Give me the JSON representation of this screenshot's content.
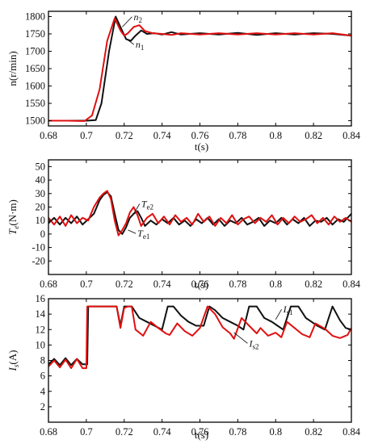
{
  "colors": {
    "series_1": "#111111",
    "series_2": "#e01010"
  },
  "chart_data": [
    {
      "type": "line",
      "xlabel": "t(s)",
      "ylabel": "n(r/min)",
      "xlim": [
        0.68,
        0.84
      ],
      "ylim": [
        1485,
        1815
      ],
      "xticks": [
        "0.68",
        "0.7",
        "0.72",
        "0.74",
        "0.76",
        "0.78",
        "0.8",
        "0.82",
        "0.84"
      ],
      "yticks": [
        "1500",
        "1550",
        "1600",
        "1650",
        "1700",
        "1750",
        "1800"
      ],
      "grid": false,
      "annotations": [
        {
          "label": "n",
          "sub": "2",
          "at": [
            0.725,
            1790
          ],
          "target": [
            0.719,
            1770
          ]
        },
        {
          "label": "n",
          "sub": "1",
          "at": [
            0.726,
            1710
          ],
          "target": [
            0.722,
            1732
          ]
        }
      ],
      "series": [
        {
          "name": "n₁",
          "color": "#111111",
          "x": [
            0.68,
            0.69,
            0.7,
            0.705,
            0.708,
            0.712,
            0.7155,
            0.718,
            0.721,
            0.7235,
            0.726,
            0.729,
            0.732,
            0.736,
            0.74,
            0.745,
            0.75,
            0.76,
            0.77,
            0.78,
            0.79,
            0.8,
            0.81,
            0.82,
            0.83,
            0.84
          ],
          "y": [
            1500,
            1500,
            1500,
            1502,
            1550,
            1700,
            1800,
            1770,
            1735,
            1730,
            1745,
            1760,
            1750,
            1752,
            1748,
            1755,
            1748,
            1752,
            1748,
            1753,
            1747,
            1752,
            1748,
            1752,
            1750,
            1745
          ]
        },
        {
          "name": "n₂",
          "color": "#e01010",
          "x": [
            0.68,
            0.69,
            0.699,
            0.703,
            0.707,
            0.711,
            0.715,
            0.718,
            0.72,
            0.722,
            0.725,
            0.728,
            0.731,
            0.735,
            0.74,
            0.745,
            0.75,
            0.76,
            0.77,
            0.78,
            0.79,
            0.8,
            0.81,
            0.82,
            0.83,
            0.84
          ],
          "y": [
            1500,
            1500,
            1499,
            1515,
            1590,
            1730,
            1795,
            1760,
            1745,
            1752,
            1770,
            1775,
            1758,
            1752,
            1750,
            1747,
            1752,
            1748,
            1752,
            1748,
            1752,
            1748,
            1752,
            1748,
            1752,
            1745
          ]
        }
      ]
    },
    {
      "type": "line",
      "xlabel": "t(s)",
      "ylabel": "Te(N·m)",
      "xlim": [
        0.68,
        0.84
      ],
      "ylim": [
        -30,
        55
      ],
      "xticks": [
        "0.68",
        "0.7",
        "0.72",
        "0.74",
        "0.76",
        "0.78",
        "0.8",
        "0.82",
        "0.84"
      ],
      "yticks": [
        "-20",
        "-10",
        "0",
        "10",
        "20",
        "30",
        "40",
        "50"
      ],
      "grid": false,
      "annotations": [
        {
          "label": "T",
          "sub": "e2",
          "at": [
            0.729,
            20
          ],
          "target": [
            0.725,
            15
          ]
        },
        {
          "label": "T",
          "sub": "e1",
          "at": [
            0.727,
            -2
          ],
          "target": [
            0.722,
            3
          ]
        }
      ],
      "series": [
        {
          "name": "Te1",
          "color": "#111111",
          "x": [
            0.68,
            0.683,
            0.686,
            0.689,
            0.692,
            0.695,
            0.698,
            0.701,
            0.704,
            0.707,
            0.709,
            0.711,
            0.713,
            0.715,
            0.717,
            0.719,
            0.721,
            0.723,
            0.725,
            0.727,
            0.729,
            0.731,
            0.734,
            0.737,
            0.74,
            0.743,
            0.746,
            0.749,
            0.752,
            0.755,
            0.758,
            0.761,
            0.764,
            0.767,
            0.77,
            0.773,
            0.776,
            0.779,
            0.782,
            0.785,
            0.788,
            0.791,
            0.794,
            0.797,
            0.8,
            0.803,
            0.806,
            0.809,
            0.812,
            0.815,
            0.818,
            0.821,
            0.824,
            0.827,
            0.83,
            0.833,
            0.836,
            0.84
          ],
          "y": [
            8,
            12,
            7,
            12,
            8,
            13,
            7,
            11,
            15,
            25,
            29,
            31,
            28,
            15,
            3,
            0,
            5,
            12,
            15,
            17,
            12,
            6,
            10,
            7,
            11,
            8,
            12,
            7,
            10,
            6,
            11,
            8,
            12,
            7,
            11,
            6,
            10,
            8,
            12,
            7,
            9,
            12,
            6,
            10,
            8,
            12,
            7,
            11,
            8,
            12,
            6,
            10,
            9,
            12,
            7,
            11,
            9,
            15
          ]
        },
        {
          "name": "Te2",
          "color": "#e01010",
          "x": [
            0.68,
            0.683,
            0.686,
            0.689,
            0.692,
            0.695,
            0.698,
            0.701,
            0.704,
            0.707,
            0.709,
            0.711,
            0.713,
            0.715,
            0.717,
            0.719,
            0.721,
            0.723,
            0.725,
            0.727,
            0.729,
            0.732,
            0.735,
            0.738,
            0.741,
            0.744,
            0.747,
            0.75,
            0.753,
            0.756,
            0.759,
            0.762,
            0.765,
            0.768,
            0.771,
            0.774,
            0.777,
            0.78,
            0.783,
            0.786,
            0.789,
            0.792,
            0.795,
            0.798,
            0.801,
            0.804,
            0.807,
            0.81,
            0.813,
            0.816,
            0.819,
            0.822,
            0.825,
            0.828,
            0.831,
            0.834,
            0.837,
            0.84
          ],
          "y": [
            12,
            7,
            13,
            6,
            14,
            8,
            12,
            10,
            20,
            27,
            30,
            32,
            26,
            10,
            -1,
            3,
            8,
            16,
            20,
            14,
            6,
            12,
            15,
            8,
            13,
            7,
            14,
            9,
            12,
            7,
            15,
            9,
            13,
            6,
            12,
            8,
            14,
            7,
            11,
            13,
            8,
            12,
            9,
            14,
            7,
            12,
            8,
            13,
            9,
            11,
            14,
            8,
            12,
            7,
            13,
            9,
            12,
            9
          ]
        }
      ]
    },
    {
      "type": "line",
      "xlabel": "t(s)",
      "ylabel": "Is(A)",
      "xlim": [
        0.68,
        0.84
      ],
      "ylim": [
        0,
        16
      ],
      "xticks": [
        "0.68",
        "0.7",
        "0.72",
        "0.74",
        "0.76",
        "0.78",
        "0.8",
        "0.82",
        "0.84"
      ],
      "yticks": [
        "2",
        "4",
        "6",
        "8",
        "10",
        "12",
        "14",
        "16"
      ],
      "grid": false,
      "annotations": [
        {
          "label": "I",
          "sub": "s1",
          "at": [
            0.804,
            14.2
          ],
          "target": [
            0.8,
            13.3
          ]
        },
        {
          "label": "I",
          "sub": "s2",
          "at": [
            0.786,
            9.8
          ],
          "target": [
            0.778,
            11.6
          ]
        }
      ],
      "series": [
        {
          "name": "Is1",
          "color": "#111111",
          "x": [
            0.68,
            0.683,
            0.686,
            0.689,
            0.692,
            0.695,
            0.698,
            0.7005,
            0.701,
            0.716,
            0.718,
            0.72,
            0.722,
            0.724,
            0.728,
            0.732,
            0.736,
            0.74,
            0.743,
            0.746,
            0.75,
            0.754,
            0.758,
            0.762,
            0.765,
            0.768,
            0.772,
            0.776,
            0.78,
            0.783,
            0.786,
            0.79,
            0.794,
            0.798,
            0.801,
            0.804,
            0.808,
            0.812,
            0.816,
            0.819,
            0.822,
            0.826,
            0.83,
            0.834,
            0.837,
            0.84
          ],
          "y": [
            7.5,
            8.2,
            7.4,
            8.3,
            7.4,
            8.2,
            7.5,
            7.5,
            15,
            15,
            12.5,
            15,
            15,
            15,
            13.5,
            13,
            12.5,
            12,
            15,
            15,
            13.8,
            13,
            12.5,
            12.5,
            15,
            14.5,
            13.5,
            13,
            12.5,
            12,
            15,
            15,
            13.5,
            13,
            12.5,
            12,
            15,
            15,
            13.5,
            13,
            12.5,
            12,
            15,
            13.2,
            12.2,
            12
          ]
        },
        {
          "name": "Is2",
          "color": "#e01010",
          "x": [
            0.68,
            0.683,
            0.686,
            0.689,
            0.692,
            0.695,
            0.698,
            0.7,
            0.7005,
            0.716,
            0.718,
            0.72,
            0.722,
            0.724,
            0.726,
            0.73,
            0.734,
            0.738,
            0.742,
            0.744,
            0.748,
            0.752,
            0.756,
            0.76,
            0.764,
            0.768,
            0.772,
            0.776,
            0.778,
            0.782,
            0.786,
            0.79,
            0.792,
            0.796,
            0.8,
            0.803,
            0.806,
            0.81,
            0.814,
            0.818,
            0.821,
            0.826,
            0.83,
            0.834,
            0.838,
            0.84
          ],
          "y": [
            7.2,
            8.0,
            7.1,
            8.1,
            7.0,
            8.2,
            7.0,
            7.0,
            15,
            15,
            12.2,
            14.8,
            15,
            15,
            12,
            11.2,
            13,
            12.2,
            11.5,
            11.3,
            12.8,
            11.8,
            11.2,
            12.2,
            15,
            14,
            12.3,
            11.5,
            10.8,
            13.5,
            12.5,
            11.5,
            12.2,
            11.2,
            11.6,
            11,
            13,
            12.2,
            11.4,
            11,
            12.8,
            12.1,
            11.2,
            10.9,
            11.3,
            12.2
          ]
        }
      ]
    }
  ]
}
